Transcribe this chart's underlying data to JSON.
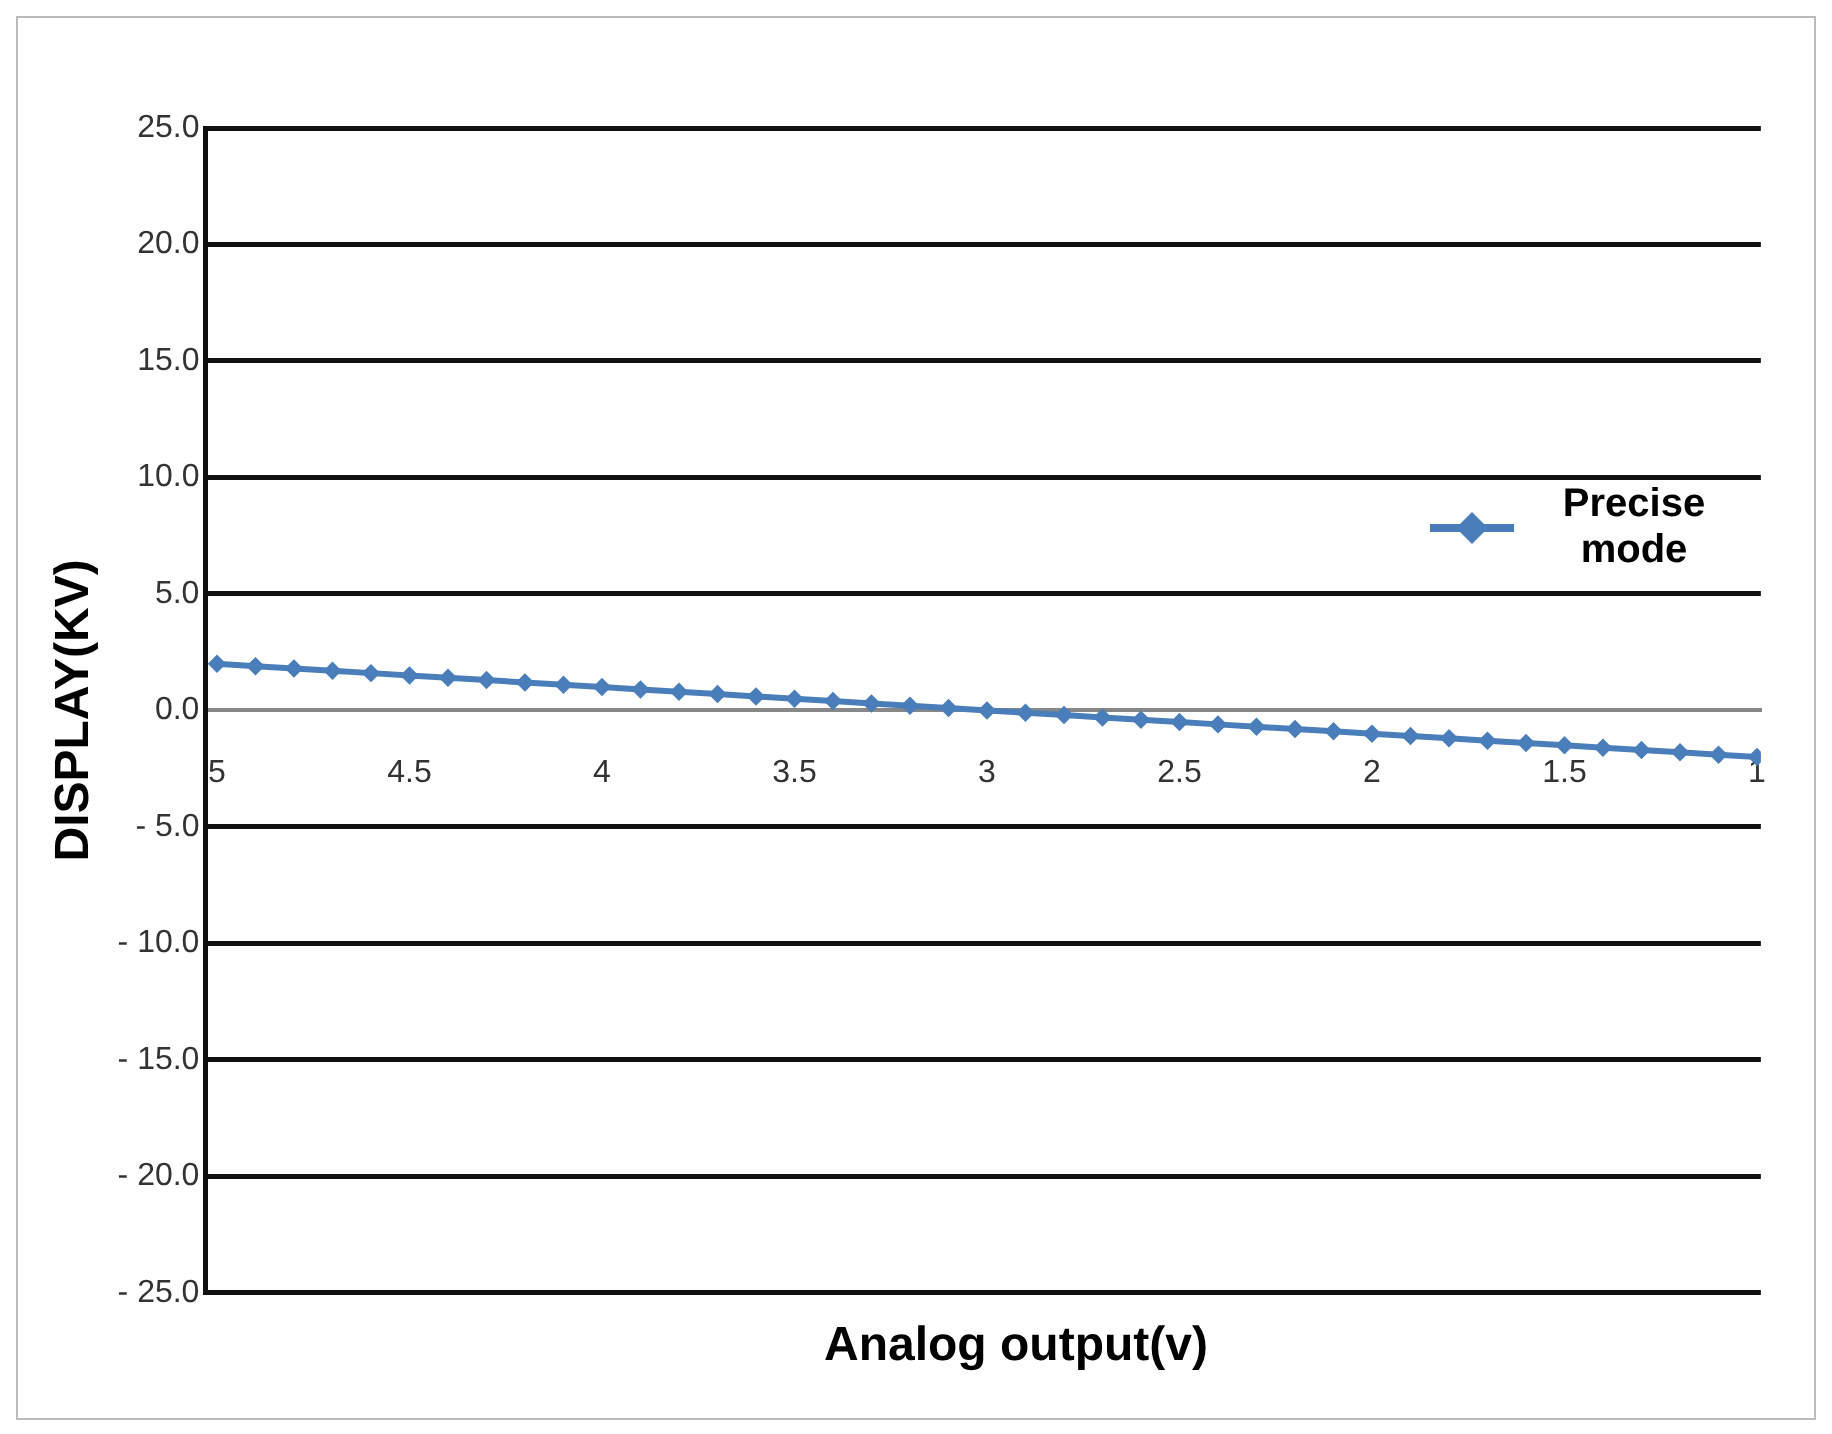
{
  "chart_data": {
    "type": "line",
    "xlabel": "Analog output(v)",
    "ylabel": "DISPLAY(KV)",
    "xlim": [
      5.03,
      0.99
    ],
    "xticks": [
      5,
      4.5,
      4,
      3.5,
      3,
      2.5,
      2,
      1.5,
      1
    ],
    "ylim": [
      -25,
      25
    ],
    "yticks": [
      {
        "value": -25,
        "label": "- 25.0"
      },
      {
        "value": -20,
        "label": "- 20.0"
      },
      {
        "value": -15,
        "label": "- 15.0"
      },
      {
        "value": -10,
        "label": "- 10.0"
      },
      {
        "value": -5,
        "label": "- 5.0"
      },
      {
        "value": 0,
        "label": "0.0"
      },
      {
        "value": 5,
        "label": "5.0"
      },
      {
        "value": 10,
        "label": "10.0"
      },
      {
        "value": 15,
        "label": "15.0"
      },
      {
        "value": 20,
        "label": "20.0"
      },
      {
        "value": 25,
        "label": "25.0"
      }
    ],
    "grid": "y",
    "legend": "right",
    "marker": "diamond",
    "series": [
      {
        "name": "Precise mode",
        "color": "#4a7ebb",
        "x": [
          5,
          4.9,
          4.8,
          4.7,
          4.6,
          4.5,
          4.4,
          4.3,
          4.2,
          4.1,
          4,
          3.9,
          3.8,
          3.7,
          3.6,
          3.5,
          3.4,
          3.3,
          3.2,
          3.1,
          3,
          2.9,
          2.8,
          2.7,
          2.6,
          2.5,
          2.4,
          2.3,
          2.2,
          2.1,
          2,
          1.9,
          1.8,
          1.7,
          1.6,
          1.5,
          1.4,
          1.3,
          1.2,
          1.1,
          1
        ],
        "values": [
          2,
          1.9,
          1.8,
          1.7,
          1.6,
          1.5,
          1.4,
          1.3,
          1.2,
          1.1,
          1,
          0.9,
          0.8,
          0.7,
          0.6,
          0.5,
          0.4,
          0.3,
          0.2,
          0.1,
          0,
          -0.1,
          -0.2,
          -0.3,
          -0.4,
          -0.5,
          -0.6,
          -0.7,
          -0.8,
          -0.9,
          -1,
          -1.1,
          -1.2,
          -1.3,
          -1.4,
          -1.5,
          -1.6,
          -1.7,
          -1.8,
          -1.9,
          -2
        ]
      }
    ]
  }
}
